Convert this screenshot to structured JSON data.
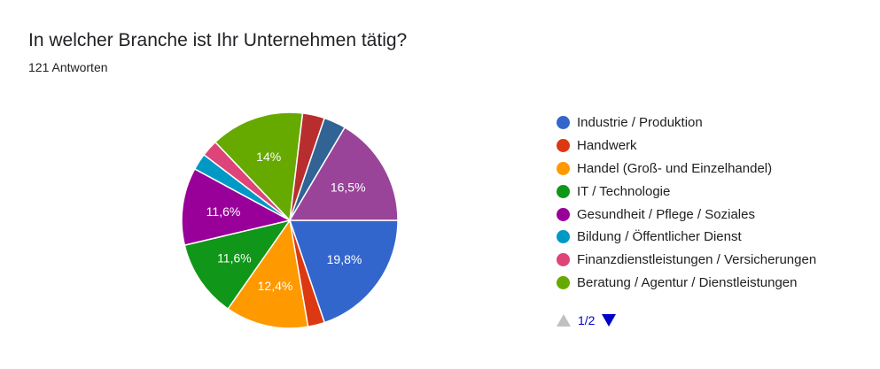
{
  "title": "In welcher Branche ist Ihr Unternehmen tätig?",
  "subtitle": "121 Antworten",
  "chart_data": {
    "type": "pie",
    "legend_position": "right",
    "slices": [
      {
        "label": "",
        "value": 19.8,
        "display": "19,8%",
        "color": "#3366cc"
      },
      {
        "label": "",
        "value": 2.5,
        "display": "",
        "color": "#dc3912"
      },
      {
        "label": "",
        "value": 12.4,
        "display": "12,4%",
        "color": "#ff9900"
      },
      {
        "label": "",
        "value": 11.6,
        "display": "11,6%",
        "color": "#109618"
      },
      {
        "label": "",
        "value": 11.6,
        "display": "11,6%",
        "color": "#990099"
      },
      {
        "label": "",
        "value": 2.5,
        "display": "",
        "color": "#0099c6"
      },
      {
        "label": "",
        "value": 2.5,
        "display": "",
        "color": "#dd4477"
      },
      {
        "label": "",
        "value": 14.0,
        "display": "14%",
        "color": "#66aa00"
      },
      {
        "label": "",
        "value": 3.3,
        "display": "",
        "color": "#b82e2e"
      },
      {
        "label": "",
        "value": 3.3,
        "display": "",
        "color": "#316395"
      },
      {
        "label": "",
        "value": 16.5,
        "display": "16,5%",
        "color": "#994499"
      }
    ],
    "legend": [
      {
        "label": "Industrie / Produktion",
        "color": "#3366cc"
      },
      {
        "label": "Handwerk",
        "color": "#dc3912"
      },
      {
        "label": "Handel (Groß- und Einzelhandel)",
        "color": "#ff9900"
      },
      {
        "label": "IT / Technologie",
        "color": "#109618"
      },
      {
        "label": "Gesundheit / Pflege / Soziales",
        "color": "#990099"
      },
      {
        "label": "Bildung / Öffentlicher Dienst",
        "color": "#0099c6"
      },
      {
        "label": "Finanzdienstleistungen / Versicherungen",
        "color": "#dd4477"
      },
      {
        "label": "Beratung / Agentur / Dienstleistungen",
        "color": "#66aa00"
      }
    ]
  },
  "pager": {
    "label": "1/2",
    "prev_icon": "triangle-up-icon",
    "next_icon": "triangle-down-icon",
    "prev_color": "#c0c0c0",
    "next_color": "#0000cc"
  }
}
